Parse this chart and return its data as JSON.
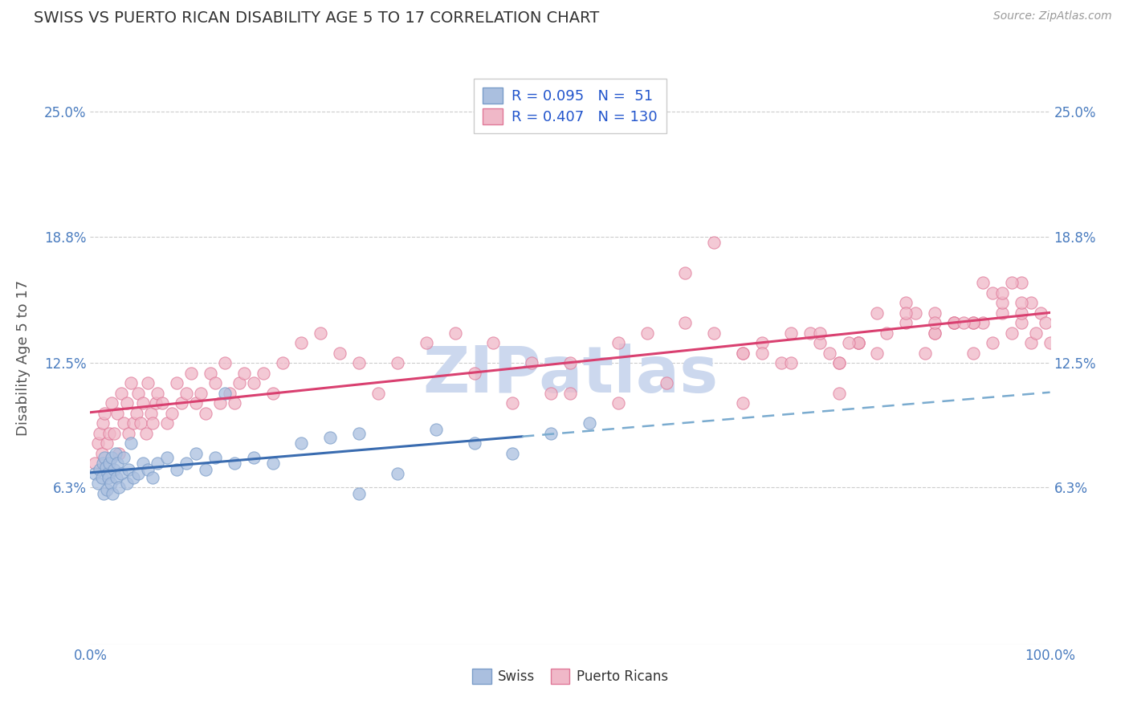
{
  "title": "SWISS VS PUERTO RICAN DISABILITY AGE 5 TO 17 CORRELATION CHART",
  "source_text": "Source: ZipAtlas.com",
  "ylabel": "Disability Age 5 to 17",
  "xlim": [
    0,
    100
  ],
  "ylim": [
    -1.5,
    27.0
  ],
  "ytick_vals": [
    6.3,
    12.5,
    18.8,
    25.0
  ],
  "ytick_labels": [
    "6.3%",
    "12.5%",
    "18.8%",
    "25.0%"
  ],
  "xtick_vals": [
    0,
    100
  ],
  "xtick_labels": [
    "0.0%",
    "100.0%"
  ],
  "swiss_R": 0.095,
  "swiss_N": 51,
  "pr_R": 0.407,
  "pr_N": 130,
  "blue_scatter_face": "#aabfdf",
  "blue_scatter_edge": "#7a9cc8",
  "pink_scatter_face": "#f0b8c8",
  "pink_scatter_edge": "#e07898",
  "trend_blue_solid_color": "#3a6cb0",
  "trend_blue_dash_color": "#7aabcf",
  "trend_pink_color": "#d94070",
  "grid_color": "#cccccc",
  "title_color": "#333333",
  "axis_label_color": "#555555",
  "tick_color": "#4a7cbf",
  "watermark_color": "#ccd8ee",
  "legend_text_color": "#2255cc",
  "background": "#ffffff",
  "blue_solid_x_end": 45,
  "swiss_x": [
    0.5,
    0.8,
    1.0,
    1.2,
    1.3,
    1.4,
    1.5,
    1.6,
    1.7,
    1.8,
    1.9,
    2.0,
    2.1,
    2.2,
    2.3,
    2.5,
    2.6,
    2.7,
    2.8,
    3.0,
    3.2,
    3.5,
    3.8,
    4.0,
    4.2,
    4.5,
    5.0,
    5.5,
    6.0,
    6.5,
    7.0,
    8.0,
    9.0,
    10.0,
    11.0,
    12.0,
    13.0,
    14.0,
    15.0,
    17.0,
    19.0,
    22.0,
    25.0,
    28.0,
    32.0,
    36.0,
    40.0,
    44.0,
    48.0,
    52.0,
    28.0
  ],
  "swiss_y": [
    7.0,
    6.5,
    7.2,
    6.8,
    7.5,
    6.0,
    7.8,
    7.3,
    6.2,
    7.0,
    6.8,
    7.5,
    6.5,
    7.8,
    6.0,
    7.2,
    8.0,
    6.8,
    7.5,
    6.3,
    7.0,
    7.8,
    6.5,
    7.2,
    8.5,
    6.8,
    7.0,
    7.5,
    7.2,
    6.8,
    7.5,
    7.8,
    7.2,
    7.5,
    8.0,
    7.2,
    7.8,
    11.0,
    7.5,
    7.8,
    7.5,
    8.5,
    8.8,
    9.0,
    7.0,
    9.2,
    8.5,
    8.0,
    9.0,
    9.5,
    6.0
  ],
  "pr_x": [
    0.5,
    0.8,
    1.0,
    1.2,
    1.3,
    1.5,
    1.7,
    2.0,
    2.2,
    2.5,
    2.8,
    3.0,
    3.2,
    3.5,
    3.8,
    4.0,
    4.2,
    4.5,
    4.8,
    5.0,
    5.2,
    5.5,
    5.8,
    6.0,
    6.3,
    6.5,
    6.8,
    7.0,
    7.5,
    8.0,
    8.5,
    9.0,
    9.5,
    10.0,
    10.5,
    11.0,
    11.5,
    12.0,
    12.5,
    13.0,
    13.5,
    14.0,
    14.5,
    15.0,
    15.5,
    16.0,
    17.0,
    18.0,
    19.0,
    20.0,
    22.0,
    24.0,
    26.0,
    28.0,
    30.0,
    32.0,
    35.0,
    38.0,
    40.0,
    42.0,
    44.0,
    46.0,
    48.0,
    50.0,
    55.0,
    58.0,
    62.0,
    65.0,
    68.0,
    70.0,
    73.0,
    76.0,
    78.0,
    80.0,
    82.0,
    85.0,
    87.0,
    88.0,
    90.0,
    92.0,
    93.0,
    94.0,
    95.0,
    96.0,
    97.0,
    98.0,
    98.5,
    99.0,
    99.5,
    100.0,
    62.0,
    70.0,
    75.0,
    80.0,
    85.0,
    90.0,
    78.0,
    88.0,
    92.0,
    95.0,
    97.0,
    65.0,
    72.0,
    80.0,
    86.0,
    90.0,
    94.0,
    97.0,
    77.0,
    83.0,
    88.0,
    92.0,
    96.0,
    73.0,
    79.0,
    85.0,
    91.0,
    95.0,
    98.0,
    68.0,
    76.0,
    82.0,
    88.0,
    93.0,
    97.0,
    50.0,
    55.0,
    60.0,
    68.0,
    78.0
  ],
  "pr_y": [
    7.5,
    8.5,
    9.0,
    8.0,
    9.5,
    10.0,
    8.5,
    9.0,
    10.5,
    9.0,
    10.0,
    8.0,
    11.0,
    9.5,
    10.5,
    9.0,
    11.5,
    9.5,
    10.0,
    11.0,
    9.5,
    10.5,
    9.0,
    11.5,
    10.0,
    9.5,
    10.5,
    11.0,
    10.5,
    9.5,
    10.0,
    11.5,
    10.5,
    11.0,
    12.0,
    10.5,
    11.0,
    10.0,
    12.0,
    11.5,
    10.5,
    12.5,
    11.0,
    10.5,
    11.5,
    12.0,
    11.5,
    12.0,
    11.0,
    12.5,
    13.5,
    14.0,
    13.0,
    12.5,
    11.0,
    12.5,
    13.5,
    14.0,
    12.0,
    13.5,
    10.5,
    12.5,
    11.0,
    12.5,
    13.5,
    14.0,
    14.5,
    14.0,
    13.0,
    13.5,
    14.0,
    13.5,
    12.5,
    13.5,
    13.0,
    14.5,
    13.0,
    14.0,
    14.5,
    13.0,
    14.5,
    13.5,
    15.0,
    14.0,
    14.5,
    13.5,
    14.0,
    15.0,
    14.5,
    13.5,
    17.0,
    13.0,
    14.0,
    13.5,
    15.5,
    14.5,
    12.5,
    14.0,
    14.5,
    15.5,
    16.5,
    18.5,
    12.5,
    13.5,
    15.0,
    14.5,
    16.0,
    15.0,
    13.0,
    14.0,
    15.0,
    14.5,
    16.5,
    12.5,
    13.5,
    15.0,
    14.5,
    16.0,
    15.5,
    13.0,
    14.0,
    15.0,
    14.5,
    16.5,
    15.5,
    11.0,
    10.5,
    11.5,
    10.5,
    11.0
  ]
}
